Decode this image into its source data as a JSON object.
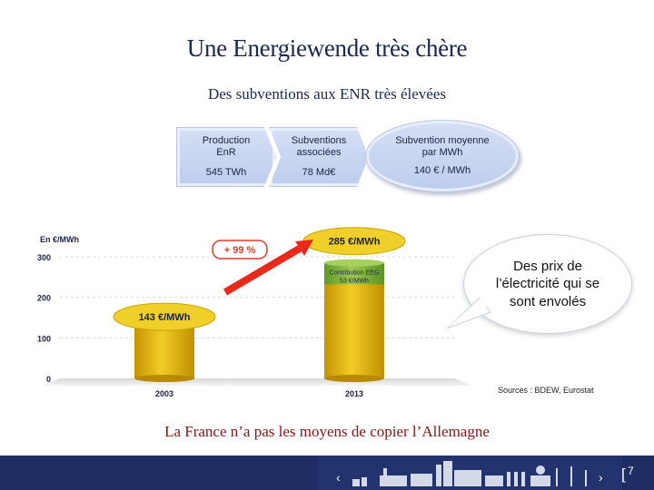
{
  "header": {
    "title": "Une Energiewende très chère",
    "subtitle": "Des subventions aux ENR très élevées"
  },
  "stats": [
    {
      "label": "Production EnR",
      "value": "545 TWh"
    },
    {
      "label": "Subventions associées",
      "value": "78 Md€"
    },
    {
      "label": "Subvention moyenne par MWh",
      "value": "140 € / MWh"
    }
  ],
  "chart_data": {
    "type": "bar",
    "ylabel": "En €/MWh",
    "ylim": [
      0,
      300
    ],
    "yticks": [
      "0",
      "100",
      "200",
      "300"
    ],
    "categories": [
      "2003",
      "2013"
    ],
    "values": [
      143,
      285
    ],
    "value_labels": [
      "143 €/MWh",
      "285 €/MWh"
    ],
    "segment": {
      "category": "2013",
      "label": "Contribution EEG 53 €/MWh",
      "value": 53
    },
    "growth_label": "+ 99 %",
    "colors": {
      "bar": "#e6b800",
      "segment": "#7fb23a",
      "label_bubble": "#f0cf2a",
      "growth_box": "#e23b28",
      "arrow": "#e8291c"
    }
  },
  "callout": {
    "text": "Des prix de l’électricité qui se sont envolés"
  },
  "sources": "Sources : BDEW, Eurostat",
  "conclusion": "La France n’a pas les moyens de copier l’Allemagne",
  "footer": {
    "page": "7",
    "bracket": "[",
    "chevron_left": "‹",
    "chevron_right": "›"
  }
}
